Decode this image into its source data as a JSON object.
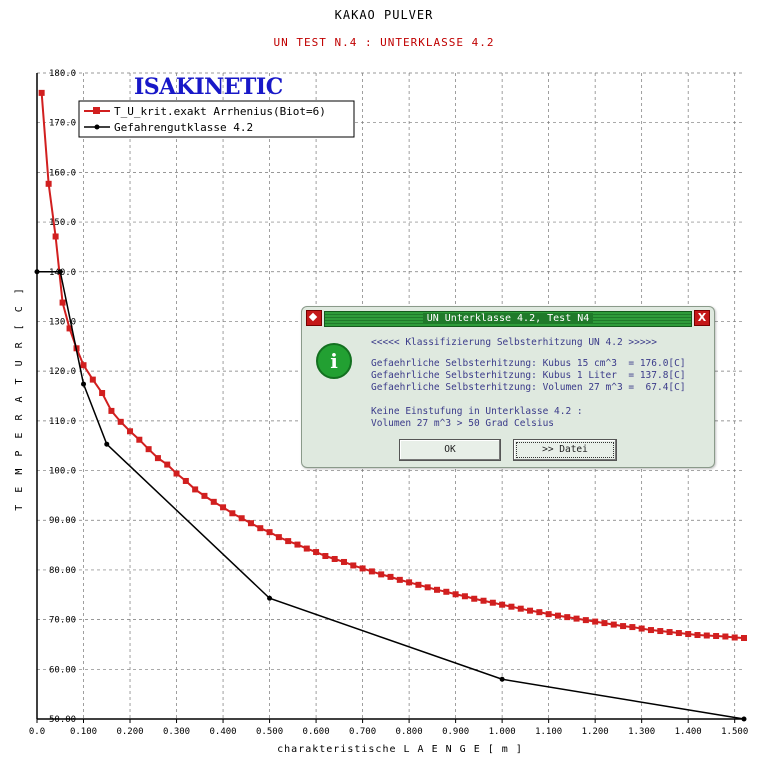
{
  "title": "KAKAO PULVER",
  "subtitle": "UN TEST N.4 : UNTERKLASSE 4.2",
  "brand": "ISAKINETIC",
  "colors": {
    "series1": "#d11f1f",
    "series2": "#000000",
    "subtitle": "#c00000",
    "brand": "#1818c8",
    "dialog_bar": "#1f7a2a"
  },
  "chart_data": {
    "type": "line",
    "title": "KAKAO PULVER",
    "subtitle": "UN TEST N.4 : UNTERKLASSE 4.2",
    "xlabel": "charakteristische L A E N G E  [ m ]",
    "ylabel": "T E M P E R A T U R   [ C ]",
    "xlim": [
      0.0,
      1.52
    ],
    "ylim": [
      50.0,
      180.0
    ],
    "x_ticks": [
      "0.0",
      "0.100",
      "0.200",
      "0.300",
      "0.400",
      "0.500",
      "0.600",
      "0.700",
      "0.800",
      "0.900",
      "1.000",
      "1.100",
      "1.200",
      "1.300",
      "1.400",
      "1.500"
    ],
    "y_ticks": [
      "50.00",
      "60.00",
      "70.00",
      "80.00",
      "90.00",
      "100.0",
      "110.0",
      "120.0",
      "130.0",
      "140.0",
      "150.0",
      "160.0",
      "170.0",
      "180.0"
    ],
    "grid": true,
    "legend_position": "top-left",
    "series": [
      {
        "name": "T_U_krit.exakt Arrhenius(Biot=6)",
        "marker": "square",
        "x": [
          0.01,
          0.025,
          0.04,
          0.055,
          0.07,
          0.085,
          0.1,
          0.12,
          0.14,
          0.16,
          0.18,
          0.2,
          0.22,
          0.24,
          0.26,
          0.28,
          0.3,
          0.32,
          0.34,
          0.36,
          0.38,
          0.4,
          0.42,
          0.44,
          0.46,
          0.48,
          0.5,
          0.52,
          0.54,
          0.56,
          0.58,
          0.6,
          0.62,
          0.64,
          0.66,
          0.68,
          0.7,
          0.72,
          0.74,
          0.76,
          0.78,
          0.8,
          0.82,
          0.84,
          0.86,
          0.88,
          0.9,
          0.92,
          0.94,
          0.96,
          0.98,
          1.0,
          1.02,
          1.04,
          1.06,
          1.08,
          1.1,
          1.12,
          1.14,
          1.16,
          1.18,
          1.2,
          1.22,
          1.24,
          1.26,
          1.28,
          1.3,
          1.32,
          1.34,
          1.36,
          1.38,
          1.4,
          1.42,
          1.44,
          1.46,
          1.48,
          1.5,
          1.52
        ],
        "y": [
          176.0,
          157.7,
          147.1,
          133.8,
          128.6,
          124.6,
          121.2,
          118.3,
          115.6,
          112.0,
          109.8,
          107.9,
          106.2,
          104.3,
          102.5,
          101.2,
          99.4,
          97.9,
          96.2,
          94.9,
          93.7,
          92.6,
          91.4,
          90.4,
          89.4,
          88.4,
          87.6,
          86.6,
          85.8,
          85.1,
          84.3,
          83.6,
          82.8,
          82.2,
          81.6,
          80.9,
          80.3,
          79.7,
          79.1,
          78.6,
          78.0,
          77.5,
          77.0,
          76.5,
          76.0,
          75.6,
          75.1,
          74.7,
          74.2,
          73.8,
          73.4,
          73.0,
          72.6,
          72.2,
          71.8,
          71.5,
          71.1,
          70.8,
          70.5,
          70.2,
          69.9,
          69.6,
          69.3,
          69.0,
          68.7,
          68.5,
          68.2,
          67.9,
          67.7,
          67.5,
          67.3,
          67.1,
          66.9,
          66.8,
          66.7,
          66.6,
          66.4,
          66.3
        ]
      },
      {
        "name": "Gefahrengutklasse 4.2",
        "marker": "dot",
        "x": [
          0.0,
          0.05,
          0.1,
          0.15,
          0.5,
          1.0,
          1.52
        ],
        "y": [
          140.0,
          140.0,
          117.4,
          105.3,
          74.3,
          58.0,
          50.0
        ]
      }
    ]
  },
  "dialog": {
    "title": "UN Unterklasse 4.2, Test N4",
    "heading": "<<<<< Klassifizierung Selbsterhitzung UN 4.2 >>>>>",
    "line1": "Gefaehrliche Selbsterhitzung: Kubus 15 cm^3  = 176.0[C]",
    "line2": "Gefaehrliche Selbsterhitzung: Kubus 1 Liter  = 137.8[C]",
    "line3": "Gefaehrliche Selbsterhitzung: Volumen 27 m^3 =  67.4[C]",
    "line4": "Keine Einstufung in Unterklasse 4.2 :",
    "line5": "Volumen 27 m^3 > 50 Grad Celsius",
    "close_label": "X",
    "info_label": "i",
    "ok_label": "OK",
    "datei_label": ">> Datei"
  }
}
